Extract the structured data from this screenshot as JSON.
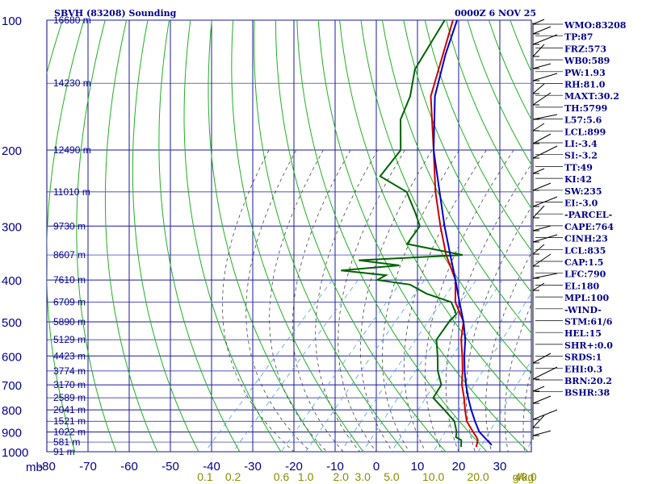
{
  "header": {
    "station": "SBVH (83208) Sounding",
    "time": "0000Z  6 NOV 25"
  },
  "axis_units": {
    "pressure": "mb"
  },
  "indices": [
    "WMO:83208",
    "TP:87",
    "FRZ:573",
    "WB0:589",
    "PW:1.93",
    "RH:81.0",
    "MAXT:30.2",
    "TH:5799",
    "L57:5.6",
    "LCL:899",
    "LI:-3.4",
    "SI:-3.2",
    "TT:49",
    "KI:42",
    "SW:235",
    "EI:-3.0",
    "-PARCEL-",
    "CAPE:764",
    "CINH:23",
    "LCL:835",
    "CAP:1.5",
    "LFC:790",
    "EL:180",
    "MPL:100",
    "-WIND-",
    "STM:61/6",
    "HEL:15",
    "SHR+:0.0",
    "SRDS:1",
    "EHI:0.3",
    "BRN:20.2",
    "BSHR:38"
  ],
  "chart_data": {
    "type": "line",
    "title": "SBVH (83208) Sounding",
    "subtitle": "0000Z  6 NOV 25",
    "xlabel": "",
    "ylabel": "mb",
    "y_scale": "log",
    "x_ticks": [
      -80,
      -70,
      -60,
      -50,
      -40,
      -30,
      -20,
      -10,
      0,
      10,
      20,
      30
    ],
    "pressure_ticks": [
      100,
      200,
      300,
      400,
      500,
      600,
      700,
      800,
      900,
      1000
    ],
    "height_labels": [
      {
        "p": 100,
        "label": "16680 m"
      },
      {
        "p": 140,
        "label": "14230 m"
      },
      {
        "p": 200,
        "label": "12490 m"
      },
      {
        "p": 250,
        "label": "11010 m"
      },
      {
        "p": 300,
        "label": "9730 m"
      },
      {
        "p": 350,
        "label": "8607 m"
      },
      {
        "p": 400,
        "label": "7610 m"
      },
      {
        "p": 450,
        "label": "6709 m"
      },
      {
        "p": 500,
        "label": "5890 m"
      },
      {
        "p": 550,
        "label": "5129 m"
      },
      {
        "p": 600,
        "label": "4423 m"
      },
      {
        "p": 650,
        "label": "3774 m"
      },
      {
        "p": 700,
        "label": "3170 m"
      },
      {
        "p": 750,
        "label": "2589 m"
      },
      {
        "p": 800,
        "label": "2041 m"
      },
      {
        "p": 850,
        "label": "1521 m"
      },
      {
        "p": 900,
        "label": "1022 m"
      },
      {
        "p": 950,
        "label": "581 m"
      },
      {
        "p": 1000,
        "label": "91 m"
      }
    ],
    "mixing_ratio_labels": [
      "0.1",
      "0.2",
      "0.6",
      "1.0",
      "2.0",
      "3.0",
      "5.0",
      "10.0",
      "20.0",
      "40.0"
    ],
    "mixing_ratio_unit": "g/kg",
    "series": [
      {
        "name": "",
        "color": "#cc0000",
        "p": [
          975,
          940,
          925,
          900,
          850,
          800,
          750,
          700,
          650,
          600,
          550,
          500,
          450,
          400,
          350,
          300,
          250,
          200,
          150,
          100
        ],
        "t": [
          23.2,
          22.0,
          21.0,
          19.0,
          15.0,
          12.0,
          9.0,
          5.5,
          2.5,
          -1.0,
          -5.0,
          -8.5,
          -15.0,
          -20.0,
          -28.0,
          -36.0,
          -45.0,
          -55.0,
          -68.0,
          -80.0
        ]
      },
      {
        "name": "",
        "color": "#006400",
        "p": [
          975,
          940,
          925,
          900,
          850,
          800,
          750,
          700,
          650,
          600,
          550,
          500,
          480,
          450,
          430,
          410,
          400,
          390,
          380,
          370,
          360,
          350,
          330,
          300,
          280,
          250,
          230,
          200,
          170,
          150,
          130,
          100
        ],
        "t": [
          19.5,
          18.0,
          16.0,
          15.0,
          12.0,
          7.0,
          1.5,
          0.5,
          -3.5,
          -7.0,
          -11.0,
          -12.0,
          -12.0,
          -16.0,
          -24.0,
          -30.0,
          -39.0,
          -38.0,
          -50.0,
          -37.0,
          -48.0,
          -24.0,
          -40.0,
          -41.0,
          -45.0,
          -52.0,
          -62.0,
          -63.0,
          -70.0,
          -73.0,
          -78.0,
          -82.0
        ]
      },
      {
        "name": "",
        "color": "#0000cc",
        "p": [
          965,
          900,
          850,
          800,
          750,
          700,
          650,
          600,
          550,
          500,
          450,
          400,
          350,
          300,
          250,
          200,
          150,
          120,
          100
        ],
        "t": [
          26.5,
          20.5,
          17.0,
          13.5,
          10.0,
          6.5,
          3.0,
          -0.5,
          -4.0,
          -8.5,
          -14.0,
          -20.0,
          -27.0,
          -35.0,
          -44.0,
          -55.0,
          -67.0,
          -74.0,
          -79.0
        ]
      }
    ]
  }
}
